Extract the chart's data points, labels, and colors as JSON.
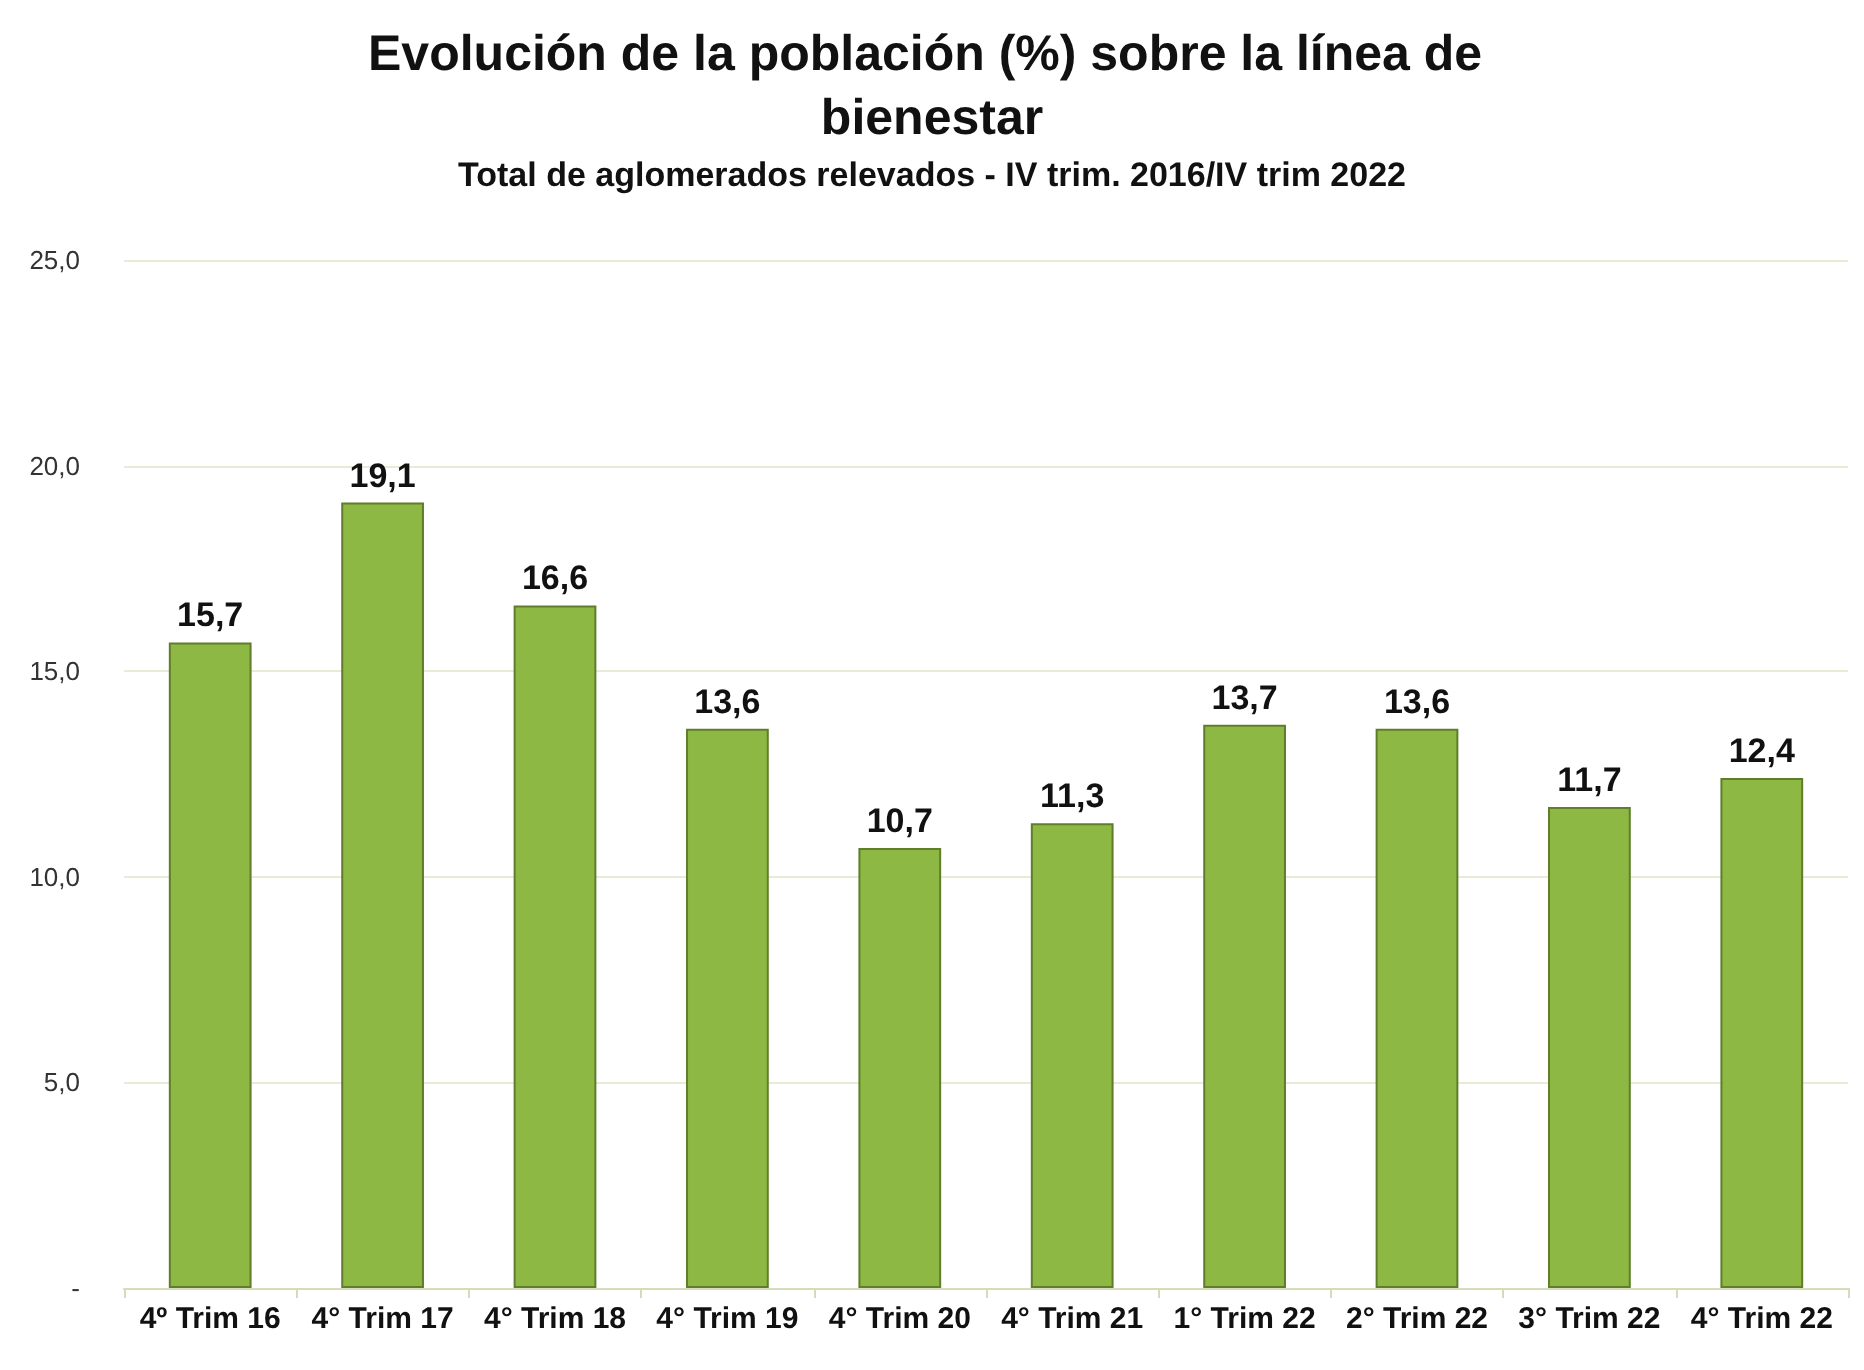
{
  "chart_data": {
    "type": "bar",
    "title": "Evolución de la población (%) sobre la línea de bienestar",
    "subtitle": "Total de aglomerados relevados - IV trim. 2016/IV trim 2022",
    "categories": [
      "4º Trim 16",
      "4° Trim 17",
      "4° Trim 18",
      "4° Trim 19",
      "4° Trim 20",
      "4° Trim 21",
      "1° Trim 22",
      "2° Trim 22",
      "3° Trim 22",
      "4° Trim 22"
    ],
    "values": [
      15.7,
      19.1,
      16.6,
      13.6,
      10.7,
      11.3,
      13.7,
      13.6,
      11.7,
      12.4
    ],
    "value_labels": [
      "15,7",
      "19,1",
      "16,6",
      "13,6",
      "10,7",
      "11,3",
      "13,7",
      "13,6",
      "11,7",
      "12,4"
    ],
    "color": "#8db843",
    "ylim": [
      0,
      25
    ],
    "yticks": [
      {
        "value": 0,
        "label": "-"
      },
      {
        "value": 5,
        "label": "5,0"
      },
      {
        "value": 10,
        "label": "10,0"
      },
      {
        "value": 15,
        "label": "15,0"
      },
      {
        "value": 20,
        "label": "20,0"
      },
      {
        "value": 25,
        "label": "25,0"
      }
    ],
    "grid": true
  }
}
